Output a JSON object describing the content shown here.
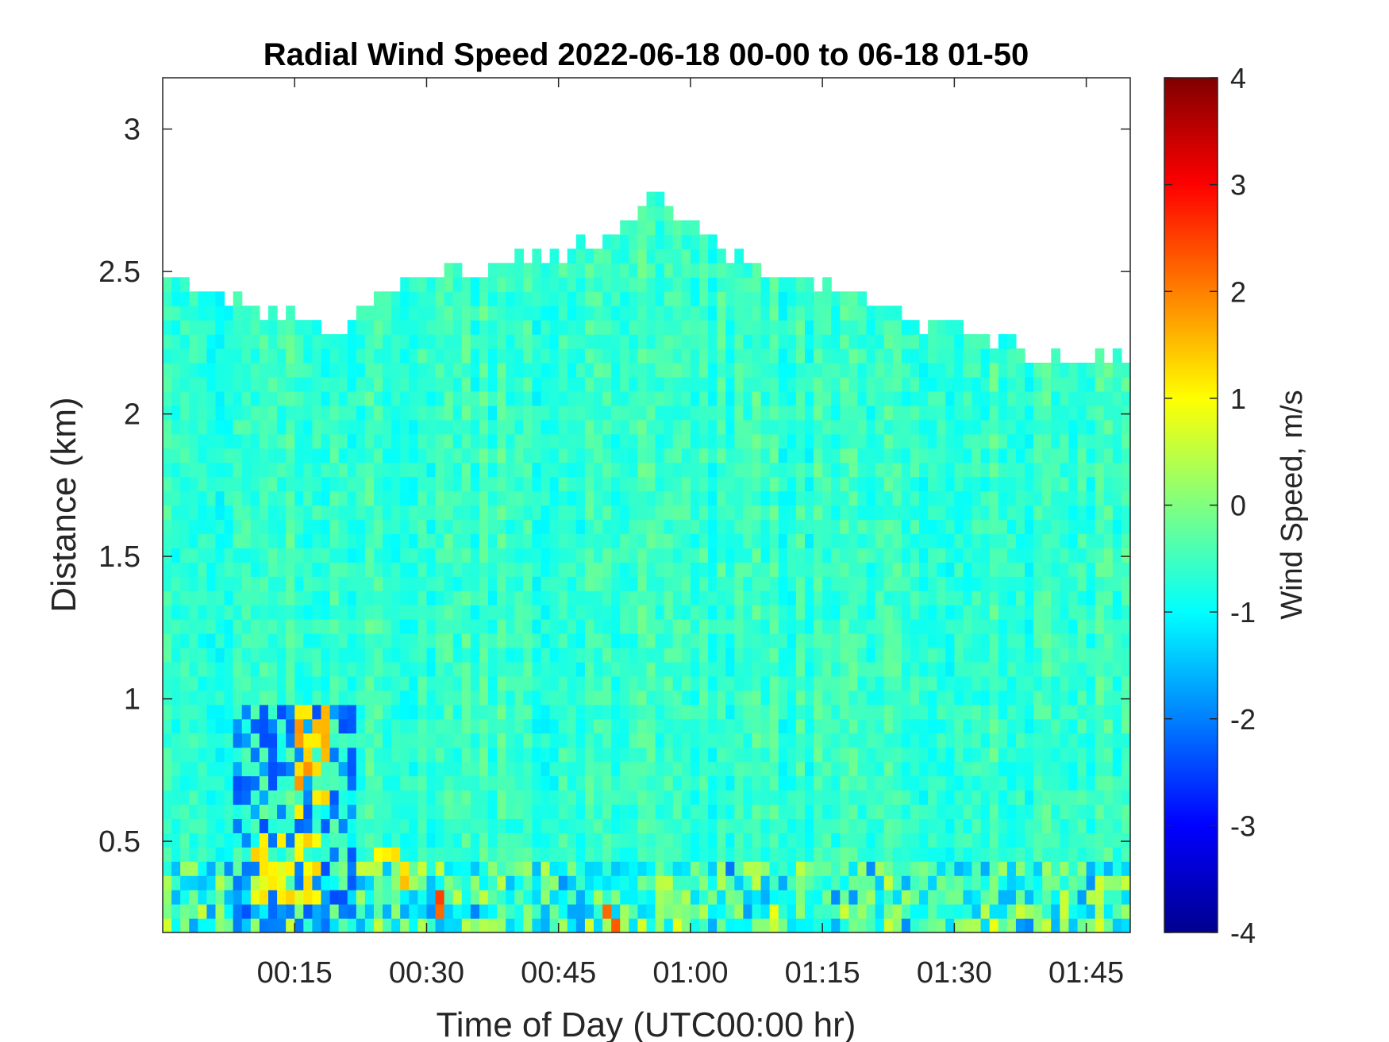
{
  "chart_data": {
    "type": "heatmap",
    "title": "Radial Wind Speed 2022-06-18 00-00 to 06-18 01-50",
    "xlabel": "Time of Day (UTC00:00 hr)",
    "ylabel": "Distance (km)",
    "x_unit": "minutes after 00:00 UTC",
    "xlim": [
      0,
      110
    ],
    "ylim": [
      0.18,
      3.18
    ],
    "xticks": [
      15,
      30,
      45,
      60,
      75,
      90,
      105
    ],
    "xticklabels": [
      "00:15",
      "00:30",
      "00:45",
      "01:00",
      "01:15",
      "01:30",
      "01:45"
    ],
    "yticks": [
      0.5,
      1,
      1.5,
      2,
      2.5,
      3
    ],
    "yticklabels": [
      "0.5",
      "1",
      "1.5",
      "2",
      "2.5",
      "3"
    ],
    "colorbar": {
      "label": "Wind Speed, m/s",
      "limits": [
        -4,
        4
      ],
      "ticks": [
        -4,
        -3,
        -2,
        -1,
        0,
        1,
        2,
        3,
        4
      ],
      "ticklabels": [
        "-4",
        "-3",
        "-2",
        "-1",
        "0",
        "1",
        "2",
        "3",
        "4"
      ],
      "colormap": "jet"
    },
    "valid_data_top_km": {
      "x": [
        0,
        5,
        10,
        15,
        20,
        25,
        30,
        35,
        40,
        45,
        50,
        52,
        55,
        58,
        60,
        62,
        65,
        70,
        75,
        80,
        85,
        90,
        95,
        100,
        105,
        110
      ],
      "y": [
        2.52,
        2.45,
        2.38,
        2.33,
        2.28,
        2.45,
        2.5,
        2.5,
        2.53,
        2.58,
        2.62,
        2.65,
        2.75,
        2.72,
        2.68,
        2.62,
        2.55,
        2.48,
        2.45,
        2.4,
        2.33,
        2.3,
        2.25,
        2.2,
        2.2,
        2.2
      ]
    },
    "background_mean_ms": -0.6,
    "features": [
      {
        "x": [
          8,
          22
        ],
        "y": [
          0.18,
          1.0
        ],
        "value": -2.0
      },
      {
        "x": [
          10,
          18
        ],
        "y": [
          0.3,
          0.55
        ],
        "value": 1.0
      },
      {
        "x": [
          15,
          19
        ],
        "y": [
          0.6,
          1.0
        ],
        "value": 1.5
      },
      {
        "x": [
          24,
          28
        ],
        "y": [
          0.35,
          0.5
        ],
        "value": 1.2
      },
      {
        "x": [
          31,
          32
        ],
        "y": [
          0.18,
          0.35
        ],
        "value": 2.5
      },
      {
        "x": [
          50,
          52
        ],
        "y": [
          0.18,
          0.3
        ],
        "value": 2.5
      }
    ]
  }
}
